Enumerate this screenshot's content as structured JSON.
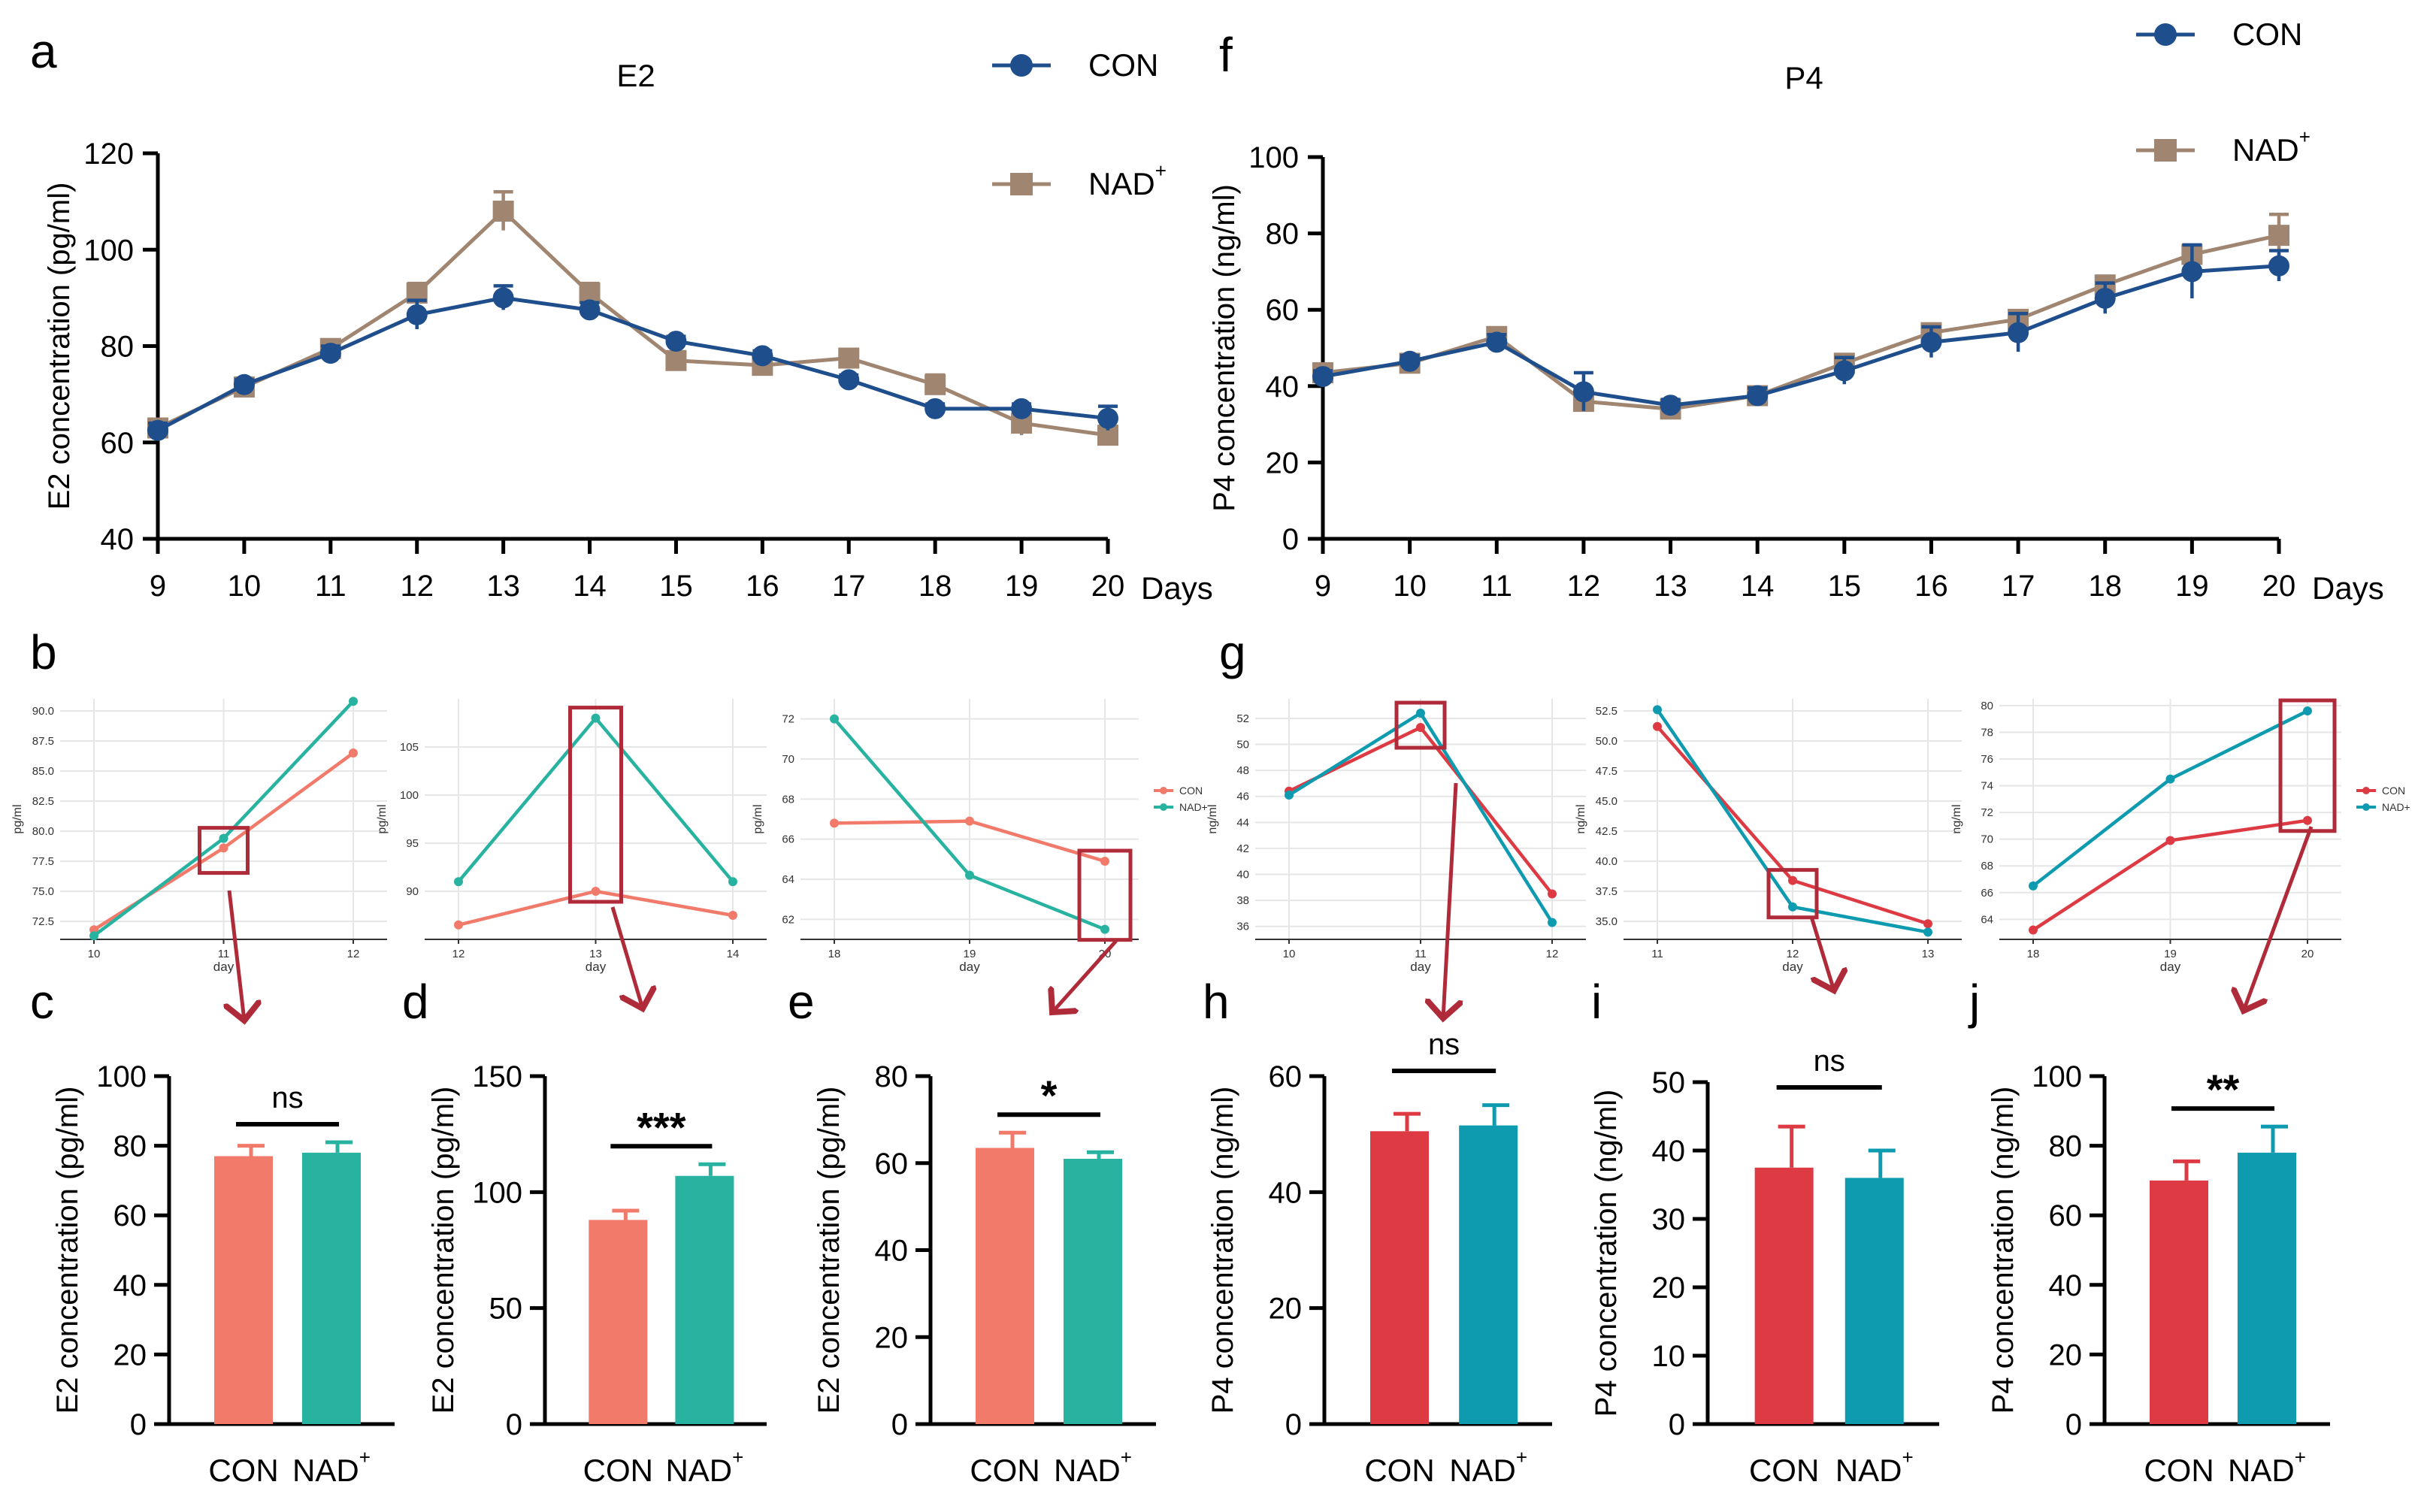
{
  "colors": {
    "con_line": "#1f4e8c",
    "nad_line": "#a08570",
    "con_salmon": "#f27a6a",
    "nad_teal": "#27b3a0",
    "con_red": "#de3a43",
    "nad_cyan": "#0e9bb0",
    "box": "#b02b3a",
    "axis": "#000000"
  },
  "panel_labels": [
    "a",
    "f",
    "b",
    "g",
    "c",
    "d",
    "e",
    "h",
    "i",
    "j"
  ],
  "chart_data": [
    {
      "id": "a",
      "type": "line",
      "title": "E2",
      "xlabel": "Days",
      "ylabel": "E2 concentration (pg/ml)",
      "x": [
        9,
        10,
        11,
        12,
        13,
        14,
        15,
        16,
        17,
        18,
        19,
        20
      ],
      "ylim": [
        40,
        120
      ],
      "yticks": [
        40,
        60,
        80,
        100,
        120
      ],
      "series": [
        {
          "name": "CON",
          "legend_label": "CON",
          "values": [
            62.5,
            72,
            78.5,
            86.5,
            90,
            87.5,
            81,
            78,
            73,
            67,
            67,
            65
          ],
          "errors": [
            1.5,
            1,
            1.5,
            3,
            2.5,
            1.5,
            1,
            1,
            1,
            1,
            1,
            2.5
          ]
        },
        {
          "name": "NAD+",
          "legend_label": "NAD",
          "values": [
            63,
            71.5,
            79.5,
            91,
            108,
            91,
            77,
            76,
            77.5,
            72,
            64,
            61.5
          ],
          "errors": [
            1.5,
            1,
            1.5,
            2,
            4,
            2,
            1,
            1,
            1.5,
            2,
            2.5,
            1.5
          ]
        }
      ]
    },
    {
      "id": "f",
      "type": "line",
      "title": "P4",
      "xlabel": "Days",
      "ylabel": "P4 concentration (ng/ml)",
      "x": [
        9,
        10,
        11,
        12,
        13,
        14,
        15,
        16,
        17,
        18,
        19,
        20
      ],
      "ylim": [
        0,
        100
      ],
      "yticks": [
        0,
        20,
        40,
        60,
        80,
        100
      ],
      "series": [
        {
          "name": "CON",
          "legend_label": "CON",
          "values": [
            42.5,
            46.5,
            51.5,
            38.5,
            35,
            37.5,
            44,
            51.5,
            54,
            63,
            70,
            71.5
          ],
          "errors": [
            1.5,
            1.5,
            2,
            5,
            1.5,
            2,
            3.5,
            4,
            5,
            4,
            7,
            4
          ]
        },
        {
          "name": "NAD+",
          "legend_label": "NAD",
          "values": [
            43.5,
            46,
            53,
            36,
            34,
            37.5,
            46,
            54,
            57.5,
            66.5,
            74.5,
            79.5
          ],
          "errors": [
            1.5,
            1.5,
            1.5,
            2,
            1.5,
            1.5,
            1.5,
            1.5,
            1.5,
            1.5,
            1.5,
            5.5
          ]
        }
      ]
    },
    {
      "id": "b1",
      "type": "line",
      "xlabel": "day",
      "ylabel": "pg/ml",
      "categories": [
        "10",
        "11",
        "12"
      ],
      "ylim": [
        71,
        91
      ],
      "yticks": [
        "72.5",
        "75.0",
        "77.5",
        "80.0",
        "82.5",
        "85.0",
        "87.5",
        "90.0"
      ],
      "series": [
        {
          "name": "CON",
          "values": [
            71.8,
            78.6,
            86.5
          ]
        },
        {
          "name": "NAD+",
          "values": [
            71.3,
            79.4,
            90.8
          ]
        }
      ],
      "highlight": "11"
    },
    {
      "id": "b2",
      "type": "line",
      "xlabel": "day",
      "ylabel": "pg/ml",
      "categories": [
        "12",
        "13",
        "14"
      ],
      "ylim": [
        85,
        110
      ],
      "yticks": [
        "90",
        "95",
        "100",
        "105"
      ],
      "series": [
        {
          "name": "CON",
          "values": [
            86.5,
            90,
            87.5
          ]
        },
        {
          "name": "NAD+",
          "values": [
            91,
            108,
            91
          ]
        }
      ],
      "highlight": "13"
    },
    {
      "id": "b3",
      "type": "line",
      "xlabel": "day",
      "ylabel": "pg/ml",
      "categories": [
        "18",
        "19",
        "20"
      ],
      "ylim": [
        61,
        73
      ],
      "yticks": [
        "62",
        "64",
        "66",
        "68",
        "70",
        "72"
      ],
      "series": [
        {
          "name": "CON",
          "values": [
            66.8,
            66.9,
            64.9
          ]
        },
        {
          "name": "NAD+",
          "values": [
            72,
            64.2,
            61.5
          ]
        }
      ],
      "highlight": "20",
      "legend": [
        "CON",
        "NAD+"
      ]
    },
    {
      "id": "g1",
      "type": "line",
      "xlabel": "day",
      "ylabel": "ng/ml",
      "categories": [
        "10",
        "11",
        "12"
      ],
      "ylim": [
        35,
        53.5
      ],
      "yticks": [
        "36",
        "38",
        "40",
        "42",
        "44",
        "46",
        "48",
        "50",
        "52"
      ],
      "series": [
        {
          "name": "CON",
          "values": [
            46.4,
            51.3,
            38.5
          ]
        },
        {
          "name": "NAD+",
          "values": [
            46.1,
            52.4,
            36.3
          ]
        }
      ],
      "highlight": "11"
    },
    {
      "id": "g2",
      "type": "line",
      "xlabel": "day",
      "ylabel": "ng/ml",
      "categories": [
        "11",
        "12",
        "13"
      ],
      "ylim": [
        33.5,
        53.5
      ],
      "yticks": [
        "35.0",
        "37.5",
        "40.0",
        "42.5",
        "45.0",
        "47.5",
        "50.0",
        "52.5"
      ],
      "series": [
        {
          "name": "CON",
          "values": [
            51.2,
            38.4,
            34.8
          ]
        },
        {
          "name": "NAD+",
          "values": [
            52.6,
            36.2,
            34.1
          ]
        }
      ],
      "highlight": "12"
    },
    {
      "id": "g3",
      "type": "line",
      "xlabel": "day",
      "ylabel": "ng/ml",
      "categories": [
        "18",
        "19",
        "20"
      ],
      "ylim": [
        62.5,
        80.5
      ],
      "yticks": [
        "64",
        "66",
        "68",
        "70",
        "72",
        "74",
        "76",
        "78",
        "80"
      ],
      "series": [
        {
          "name": "CON",
          "values": [
            63.2,
            69.9,
            71.4
          ]
        },
        {
          "name": "NAD+",
          "values": [
            66.5,
            74.5,
            79.6
          ]
        }
      ],
      "highlight": "20",
      "legend": [
        "CON",
        "NAD+"
      ]
    },
    {
      "id": "c",
      "type": "bar",
      "ylabel": "E2 concentration (pg/ml)",
      "categories": [
        "CON",
        "NAD"
      ],
      "values": [
        77,
        78
      ],
      "errors": [
        3,
        3
      ],
      "ylim": [
        0,
        100
      ],
      "yticks": [
        0,
        20,
        40,
        60,
        80,
        100
      ],
      "significance": "ns"
    },
    {
      "id": "d",
      "type": "bar",
      "ylabel": "E2 concentration (pg/ml)",
      "categories": [
        "CON",
        "NAD"
      ],
      "values": [
        88,
        107
      ],
      "errors": [
        4,
        5
      ],
      "ylim": [
        0,
        150
      ],
      "yticks": [
        0,
        50,
        100,
        150
      ],
      "significance": "***"
    },
    {
      "id": "e",
      "type": "bar",
      "ylabel": "E2 concentration (pg/ml)",
      "categories": [
        "CON",
        "NAD"
      ],
      "values": [
        63.5,
        61
      ],
      "errors": [
        3.5,
        1.5
      ],
      "ylim": [
        0,
        80
      ],
      "yticks": [
        0,
        20,
        40,
        60,
        80
      ],
      "significance": "*"
    },
    {
      "id": "h",
      "type": "bar",
      "ylabel": "P4 concentration (ng/ml)",
      "categories": [
        "CON",
        "NAD"
      ],
      "values": [
        50.5,
        51.5
      ],
      "errors": [
        3,
        3.5
      ],
      "ylim": [
        0,
        60
      ],
      "yticks": [
        0,
        20,
        40,
        60
      ],
      "significance": "ns"
    },
    {
      "id": "i",
      "type": "bar",
      "ylabel": "P4 concentration (ng/ml)",
      "categories": [
        "CON",
        "NAD"
      ],
      "values": [
        37.5,
        36
      ],
      "errors": [
        6,
        4
      ],
      "ylim": [
        0,
        50
      ],
      "yticks": [
        0,
        10,
        20,
        30,
        40,
        50
      ],
      "significance": "ns"
    },
    {
      "id": "j",
      "type": "bar",
      "ylabel": "P4 concentration (ng/ml)",
      "categories": [
        "CON",
        "NAD"
      ],
      "values": [
        70,
        78
      ],
      "errors": [
        5.5,
        7.5
      ],
      "ylim": [
        0,
        100
      ],
      "yticks": [
        0,
        20,
        40,
        60,
        80,
        100
      ],
      "significance": "**"
    }
  ]
}
